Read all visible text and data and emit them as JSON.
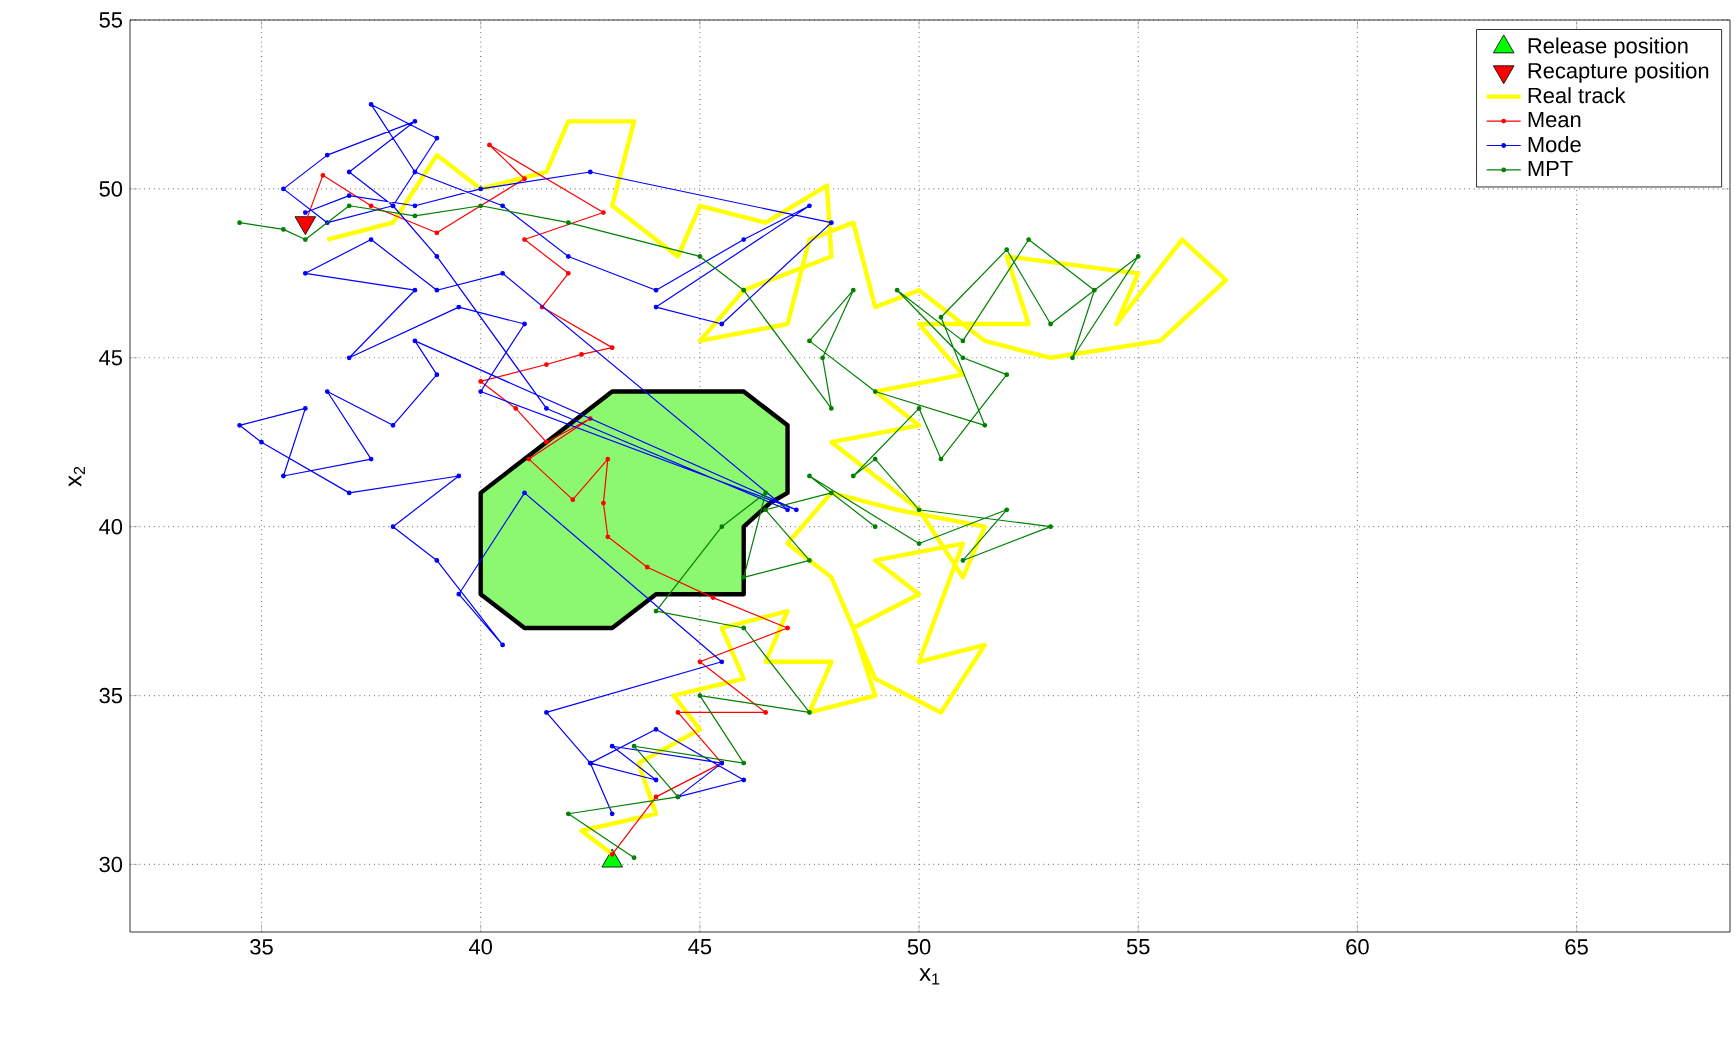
{
  "chart_data": {
    "type": "line",
    "xlabel": "x$_{1}$",
    "ylabel": "x$_{2}$",
    "xlim": [
      32,
      68.5
    ],
    "ylim": [
      28,
      55
    ],
    "xticks": [
      35,
      40,
      45,
      50,
      55,
      60,
      65
    ],
    "yticks": [
      30,
      35,
      40,
      45,
      50,
      55
    ],
    "grid": true,
    "legend": "top right",
    "series": [
      {
        "type": "area",
        "color": "#8cf870",
        "marker": "none",
        "x": [
          40,
          40,
          41,
          43,
          44,
          46,
          46,
          46.6,
          47,
          47,
          46,
          43,
          40
        ],
        "values": [
          41,
          38,
          37,
          37,
          38,
          38,
          40,
          40.7,
          41,
          43,
          44,
          44,
          41
        ]
      },
      {
        "name": "Real track",
        "color": "#ffff00",
        "marker": "none",
        "x": [
          43,
          42.3,
          44,
          43.6,
          45,
          44.4,
          46,
          45.5,
          47,
          46.5,
          48,
          47.5,
          49,
          48.5,
          50,
          49,
          51,
          50,
          51.5,
          50.5,
          49,
          48,
          47,
          48,
          49.5,
          51.5,
          51,
          50,
          48,
          50,
          49,
          51,
          50,
          52.5,
          52,
          55,
          54.5,
          56,
          57,
          55.5,
          53,
          51.5,
          50,
          49,
          48.5,
          47.5,
          47,
          45,
          46,
          48,
          47.9,
          46.5,
          45,
          44.5,
          43,
          43.5,
          42,
          41.5,
          40,
          39,
          38,
          36.5
        ],
        "values": [
          30.3,
          31,
          31.5,
          33,
          34,
          35,
          35.5,
          37,
          37.5,
          36,
          36,
          34.5,
          35,
          37,
          38,
          39,
          39.5,
          36,
          36.5,
          34.5,
          35.5,
          38.5,
          39.5,
          41,
          40.5,
          40,
          38.5,
          40.5,
          42.5,
          43,
          44,
          44.5,
          46,
          46,
          48,
          47.5,
          46,
          48.5,
          47.3,
          45.5,
          45,
          45.5,
          47,
          46.5,
          49,
          48.5,
          46,
          45.5,
          47,
          48,
          50.1,
          49,
          49.5,
          48,
          49.5,
          52,
          52,
          50.5,
          50,
          51,
          49,
          48.5
        ]
      },
      {
        "name": "Mean",
        "color": "#ff0000",
        "marker": "circle",
        "x": [
          43,
          44,
          45.5,
          44.5,
          46.5,
          45,
          47,
          45.3,
          43.8,
          42.9,
          42.8,
          42.9,
          42.1,
          41.1,
          42.5,
          41.5,
          40.8,
          40,
          41.5,
          42.3,
          43,
          41.4,
          42,
          41,
          42.8,
          40.2,
          41,
          39,
          37.5,
          36.4,
          36
        ],
        "values": [
          30.3,
          32,
          33,
          34.5,
          34.5,
          36,
          37,
          37.9,
          38.8,
          39.7,
          40.7,
          42,
          40.8,
          42,
          43.2,
          42.5,
          43.5,
          44.3,
          44.8,
          45.1,
          45.3,
          46.5,
          47.5,
          48.5,
          49.3,
          51.3,
          50.3,
          48.7,
          49.5,
          50.4,
          49
        ]
      },
      {
        "name": "Mode",
        "color": "#0000ff",
        "marker": "circle",
        "x": [
          43,
          42.5,
          44,
          43,
          45.5,
          44.5,
          46,
          44,
          42.5,
          41.5,
          45.5,
          41,
          39.5,
          40.5,
          39,
          38,
          39.5,
          37,
          35,
          34.5,
          36,
          35.5,
          37.5,
          36.5,
          38,
          39,
          38.5,
          47.2,
          40,
          41,
          39.5,
          37,
          38.5,
          36,
          37.5,
          39,
          40.5,
          47,
          41.5,
          39,
          38,
          37,
          38.5,
          36.5,
          35.5,
          36.5,
          38,
          39,
          37.5,
          38.5,
          40.5,
          42,
          44,
          46,
          47.5,
          44,
          45.5,
          48,
          42.5,
          40,
          38.5,
          37,
          36
        ],
        "values": [
          31.5,
          33,
          32.5,
          33.5,
          33,
          32,
          32.5,
          34,
          33,
          34.5,
          36,
          41,
          38,
          36.5,
          39,
          40,
          41.5,
          41,
          42.5,
          43,
          43.5,
          41.5,
          42,
          44,
          43,
          44.5,
          45.5,
          40.5,
          44,
          46,
          46.5,
          45,
          47,
          47.5,
          48.5,
          47,
          47.5,
          40.5,
          43.5,
          48,
          49.5,
          50.5,
          52,
          51,
          50,
          49,
          49.5,
          51.5,
          52.5,
          50.5,
          49.5,
          48,
          47,
          48.5,
          49.5,
          46.5,
          46,
          49,
          50.5,
          50,
          49.5,
          49.8,
          49.3
        ]
      },
      {
        "name": "MPT",
        "color": "#008000",
        "marker": "circle",
        "x": [
          43.5,
          42,
          44.5,
          43.5,
          46,
          45,
          47.5,
          46,
          44,
          45.5,
          46.5,
          46,
          47.5,
          46.5,
          48,
          49,
          47.5,
          50,
          52,
          51,
          53,
          50,
          49,
          48.5,
          50,
          50.5,
          52,
          51,
          49.5,
          51,
          52.5,
          54,
          53.5,
          55,
          53,
          52,
          50.5,
          51.5,
          49,
          47.5,
          48.5,
          47.8,
          48,
          46,
          45,
          42,
          40,
          38.5,
          37,
          36,
          35.5,
          34.5
        ],
        "values": [
          30.2,
          31.5,
          32,
          33.5,
          33,
          35,
          34.5,
          37,
          37.5,
          40,
          41,
          38.5,
          39,
          40.5,
          41,
          40,
          41.5,
          39.5,
          40.5,
          39,
          40,
          40.5,
          42,
          41.5,
          43.5,
          42,
          44.5,
          45,
          47,
          45.5,
          48.5,
          47,
          45,
          48,
          46,
          48.2,
          46.2,
          43,
          44,
          45.5,
          47,
          45,
          43.5,
          47,
          48,
          49,
          49.5,
          49.2,
          49.5,
          48.5,
          48.8,
          49
        ]
      },
      {
        "type": "scatter",
        "name": "Release position",
        "color": "#00ff00",
        "marker": "triangle",
        "x": [
          43
        ],
        "values": [
          30.1
        ]
      },
      {
        "type": "scatter",
        "name": "Recapture position",
        "color": "#ff0000",
        "marker": "triangle_down",
        "x": [
          36
        ],
        "values": [
          49
        ]
      }
    ]
  }
}
